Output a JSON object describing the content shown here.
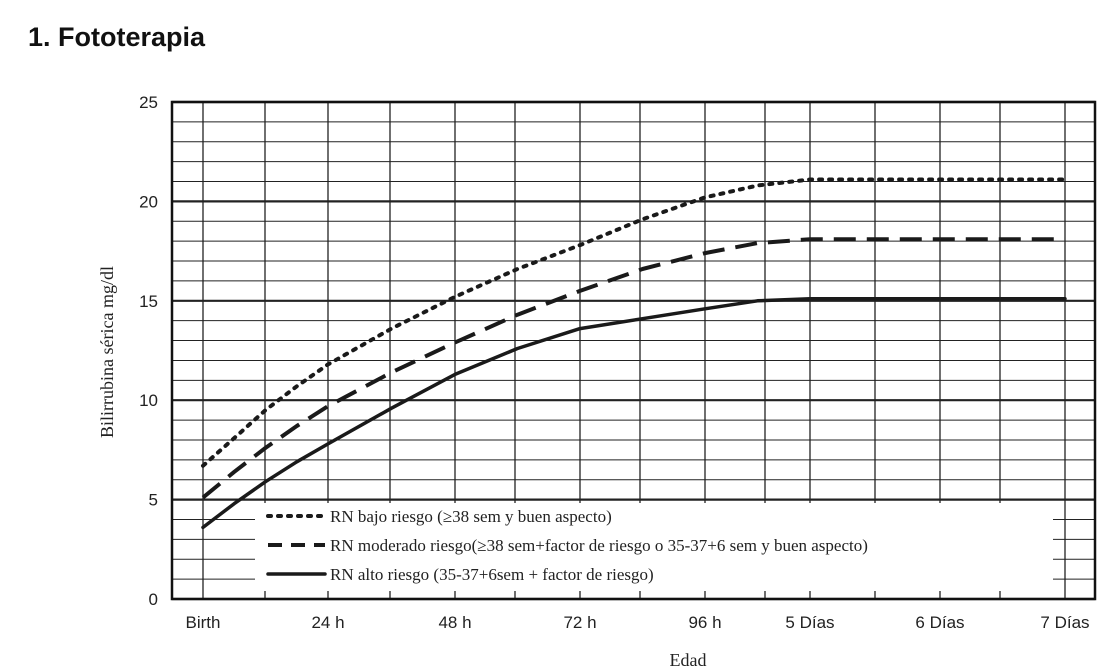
{
  "heading": "1. Fototerapia",
  "chart_data": {
    "type": "line",
    "title": "",
    "xlabel": "Edad",
    "ylabel": "Bilirrubina sérica mg/dl",
    "categories": [
      "Birth",
      "24 h",
      "48 h",
      "72 h",
      "96 h",
      "5 Días",
      "6 Días",
      "7 Días"
    ],
    "ylim": [
      0,
      25
    ],
    "yticks": [
      0,
      5,
      10,
      15,
      20,
      25
    ],
    "grid": true,
    "legend_position": "bottom-left",
    "series": [
      {
        "name": "RN bajo riesgo (≥38 sem y buen aspecto)",
        "style": "dotted",
        "x": [
          0,
          0.25,
          0.5,
          0.75,
          1,
          1.5,
          2,
          2.5,
          3,
          3.5,
          4,
          4.5,
          5,
          5.5,
          6,
          7
        ],
        "y": [
          6.7,
          8.1,
          9.5,
          10.7,
          11.8,
          13.6,
          15.2,
          16.6,
          17.8,
          19.1,
          20.2,
          20.8,
          21.1,
          21.1,
          21.1,
          21.1
        ]
      },
      {
        "name": "RN moderado riesgo(≥38 sem+factor de riesgo o 35-37+6 sem y buen aspecto)",
        "style": "dashed",
        "x": [
          0,
          0.25,
          0.5,
          0.75,
          1,
          1.5,
          2,
          2.5,
          3,
          3.5,
          4,
          4.5,
          5,
          5.5,
          6,
          7
        ],
        "y": [
          5.1,
          6.4,
          7.6,
          8.7,
          9.7,
          11.4,
          12.9,
          14.3,
          15.5,
          16.6,
          17.4,
          17.9,
          18.1,
          18.1,
          18.1,
          18.1
        ]
      },
      {
        "name": "RN alto riesgo (35-37+6sem  + factor de riesgo)",
        "style": "solid",
        "x": [
          0,
          0.25,
          0.5,
          0.75,
          1,
          1.5,
          2,
          2.5,
          3,
          3.5,
          4,
          4.5,
          5,
          5.5,
          6,
          7
        ],
        "y": [
          3.6,
          4.8,
          5.9,
          6.9,
          7.8,
          9.6,
          11.3,
          12.6,
          13.6,
          14.1,
          14.6,
          15,
          15.1,
          15.1,
          15.1,
          15.1
        ]
      }
    ]
  }
}
